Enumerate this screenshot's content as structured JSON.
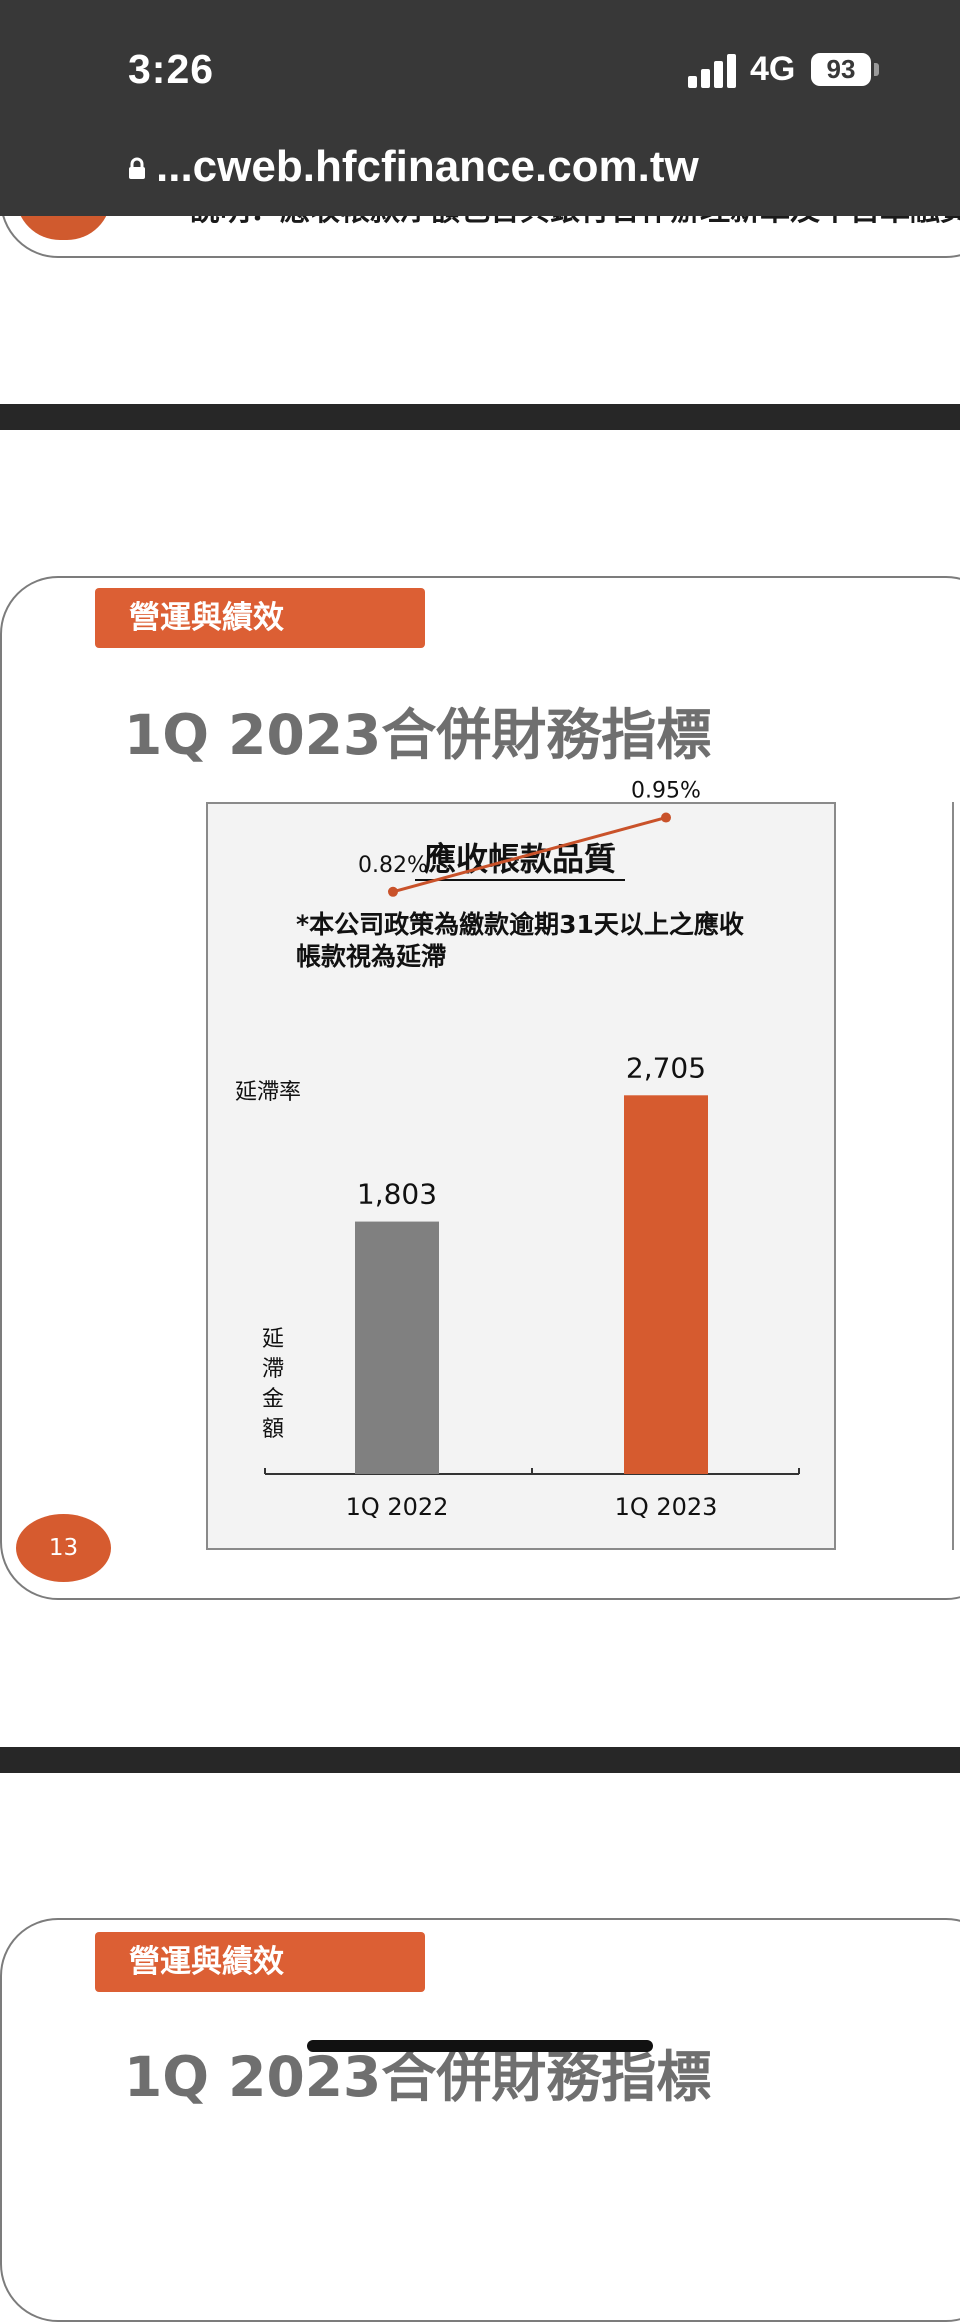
{
  "status_bar": {
    "time": "3:26",
    "network": "4G",
    "battery": "93",
    "url": "...cweb.hfcfinance.com.tw"
  },
  "prev_slide": {
    "partial_text": "說明：應收帳款淨額包含與銀行合作辦理新車及中古車融資貸款"
  },
  "slide": {
    "tag": "營運與績效",
    "title": "1Q 2023合併財務指標",
    "page_number": "13"
  },
  "next_slide": {
    "tag": "營運與績效",
    "title": "1Q 2023合併財務指標"
  },
  "chart_data": {
    "type": "bar",
    "title": "應收帳款品質",
    "note_line1": "*本公司政策為繳款逾期31天以上之應收",
    "note_line2": "帳款視為延滯",
    "categories": [
      "1Q 2022",
      "1Q 2023"
    ],
    "bar_series": {
      "values": [
        1803,
        2705
      ],
      "value_labels": [
        "1,803",
        "2,705"
      ],
      "ylabel": "延滯金額",
      "colors": [
        "#808080",
        "#d65b2f"
      ],
      "ylim": [
        0,
        3000
      ]
    },
    "line_series": {
      "values": [
        0.82,
        0.95
      ],
      "value_labels": [
        "0.82%",
        "0.95%"
      ],
      "label": "延滯率",
      "color": "#c9522a",
      "ylim": [
        0,
        1.0
      ]
    }
  },
  "colors": {
    "accent": "#dc5f34",
    "statusbar": "#383838"
  }
}
